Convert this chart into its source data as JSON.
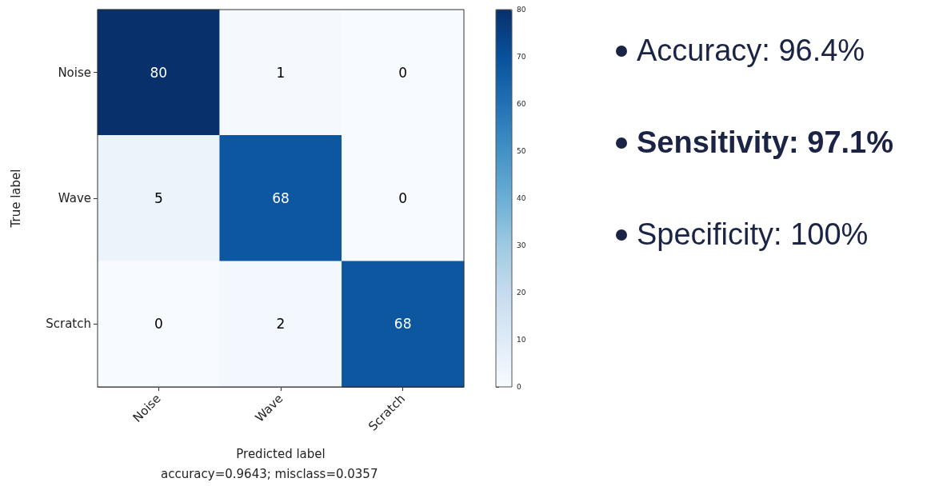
{
  "chart_data": {
    "type": "heatmap",
    "xlabel": "Predicted label",
    "ylabel": "True label",
    "categories": [
      "Noise",
      "Wave",
      "Scratch"
    ],
    "y_categories": [
      "Noise",
      "Wave",
      "Scratch"
    ],
    "cells": [
      [
        80,
        1,
        0
      ],
      [
        5,
        68,
        0
      ],
      [
        0,
        2,
        68
      ]
    ],
    "clim": [
      0,
      80
    ],
    "cticks": [
      0,
      10,
      20,
      30,
      40,
      50,
      60,
      70,
      80
    ],
    "data_labels": true,
    "annotations": [
      "accuracy=0.9643; misclass=0.0357",
      "Accuracy: 96.4%",
      "Sensitivity: 97.1%",
      "Specificity: 100%"
    ]
  }
}
